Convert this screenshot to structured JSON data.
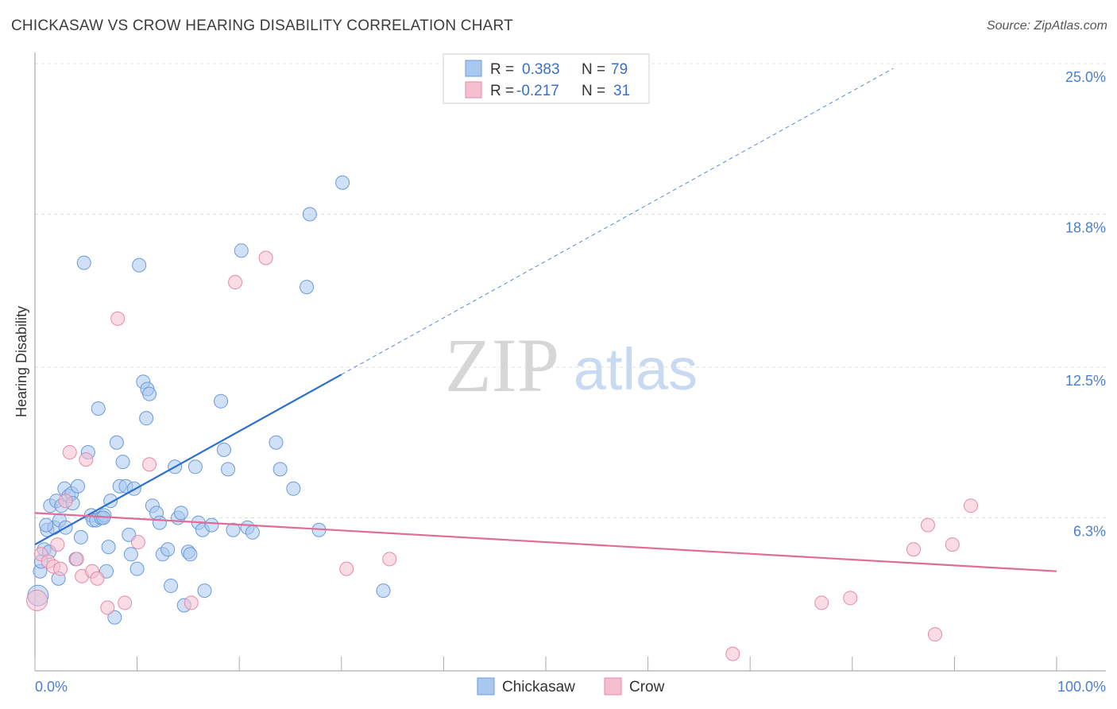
{
  "title": "CHICKASAW VS CROW HEARING DISABILITY CORRELATION CHART",
  "source": "Source: ZipAtlas.com",
  "watermark": {
    "zip": "ZIP",
    "atlas": "atlas"
  },
  "chart_data": {
    "type": "scatter",
    "title": "CHICKASAW VS CROW HEARING DISABILITY CORRELATION CHART",
    "ylabel": "Hearing Disability",
    "xlabel": "",
    "xlim": [
      0,
      100
    ],
    "ylim": [
      0,
      25
    ],
    "x_tick_labels": [
      "0.0%",
      "100.0%"
    ],
    "y_ticks": [
      6.3,
      12.5,
      18.8,
      25.0
    ],
    "y_tick_labels": [
      "6.3%",
      "12.5%",
      "18.8%",
      "25.0%"
    ],
    "grid": true,
    "legend": {
      "placement": "top-center",
      "rows": [
        {
          "r_label": "R =",
          "r_value": "0.383",
          "n_label": "N =",
          "n_value": "79"
        },
        {
          "r_label": "R =",
          "r_value": "-0.217",
          "n_label": "N =",
          "n_value": "31"
        }
      ]
    },
    "series": [
      {
        "name": "Chickasaw",
        "color": "#a9c8f0",
        "stroke": "#6b9ad8",
        "line_color": "#2a6fd0",
        "trend": {
          "x0": 0,
          "y0": 5.2,
          "x1": 30,
          "y1": 12.2,
          "solid_until": 30,
          "dashed_until": 84
        },
        "points": [
          [
            0.3,
            3.1
          ],
          [
            0.5,
            4.1
          ],
          [
            0.6,
            4.5
          ],
          [
            0.9,
            5.0
          ],
          [
            1.2,
            5.8
          ],
          [
            1.5,
            6.8
          ],
          [
            1.4,
            4.9
          ],
          [
            1.9,
            5.9
          ],
          [
            2.1,
            7.0
          ],
          [
            2.3,
            3.8
          ],
          [
            2.6,
            6.8
          ],
          [
            2.9,
            7.5
          ],
          [
            3.3,
            7.2
          ],
          [
            3.6,
            7.3
          ],
          [
            3.7,
            6.9
          ],
          [
            4.0,
            4.6
          ],
          [
            4.2,
            7.6
          ],
          [
            4.5,
            5.5
          ],
          [
            4.8,
            16.8
          ],
          [
            5.2,
            9.0
          ],
          [
            5.5,
            6.4
          ],
          [
            5.7,
            6.2
          ],
          [
            6.0,
            6.2
          ],
          [
            6.2,
            10.8
          ],
          [
            6.5,
            6.3
          ],
          [
            6.8,
            6.4
          ],
          [
            7.0,
            4.1
          ],
          [
            7.2,
            5.1
          ],
          [
            7.4,
            7.0
          ],
          [
            7.8,
            2.2
          ],
          [
            8.0,
            9.4
          ],
          [
            8.3,
            7.6
          ],
          [
            8.6,
            8.6
          ],
          [
            8.9,
            7.6
          ],
          [
            9.2,
            5.6
          ],
          [
            9.4,
            4.8
          ],
          [
            9.7,
            7.5
          ],
          [
            10.0,
            4.2
          ],
          [
            10.2,
            16.7
          ],
          [
            10.6,
            11.9
          ],
          [
            10.9,
            10.4
          ],
          [
            11.0,
            11.6
          ],
          [
            11.2,
            11.4
          ],
          [
            11.5,
            6.8
          ],
          [
            11.9,
            6.5
          ],
          [
            12.2,
            6.1
          ],
          [
            12.5,
            4.8
          ],
          [
            13.0,
            5.0
          ],
          [
            13.3,
            3.5
          ],
          [
            13.7,
            8.4
          ],
          [
            14.0,
            6.3
          ],
          [
            14.3,
            6.5
          ],
          [
            14.6,
            2.7
          ],
          [
            15.0,
            4.9
          ],
          [
            15.2,
            4.8
          ],
          [
            15.7,
            8.4
          ],
          [
            16.0,
            6.1
          ],
          [
            16.4,
            5.8
          ],
          [
            16.6,
            3.3
          ],
          [
            17.3,
            6.0
          ],
          [
            18.2,
            11.1
          ],
          [
            18.5,
            9.1
          ],
          [
            18.9,
            8.3
          ],
          [
            19.4,
            5.8
          ],
          [
            20.2,
            17.3
          ],
          [
            20.8,
            5.9
          ],
          [
            21.3,
            5.7
          ],
          [
            23.6,
            9.4
          ],
          [
            24.0,
            8.3
          ],
          [
            25.3,
            7.5
          ],
          [
            26.6,
            15.8
          ],
          [
            26.9,
            18.8
          ],
          [
            27.8,
            5.8
          ],
          [
            30.1,
            20.1
          ],
          [
            34.1,
            3.3
          ],
          [
            1.1,
            6.0
          ],
          [
            2.4,
            6.2
          ],
          [
            3.0,
            5.9
          ],
          [
            6.7,
            6.3
          ]
        ]
      },
      {
        "name": "Crow",
        "color": "#f6bfd0",
        "stroke": "#e58aa8",
        "line_color": "#e06c98",
        "trend": {
          "x0": 0,
          "y0": 6.5,
          "x1": 100,
          "y1": 4.1,
          "solid_until": 100,
          "dashed_until": 100
        },
        "points": [
          [
            0.2,
            2.9
          ],
          [
            0.6,
            4.8
          ],
          [
            1.3,
            4.5
          ],
          [
            1.8,
            4.3
          ],
          [
            2.2,
            5.2
          ],
          [
            2.5,
            4.2
          ],
          [
            3.0,
            7.0
          ],
          [
            3.4,
            9.0
          ],
          [
            4.1,
            4.6
          ],
          [
            4.6,
            3.9
          ],
          [
            5.0,
            8.7
          ],
          [
            5.6,
            4.1
          ],
          [
            6.1,
            3.8
          ],
          [
            7.1,
            2.6
          ],
          [
            8.1,
            14.5
          ],
          [
            8.8,
            2.8
          ],
          [
            10.1,
            5.3
          ],
          [
            11.2,
            8.5
          ],
          [
            15.3,
            2.8
          ],
          [
            19.6,
            16.0
          ],
          [
            22.6,
            17.0
          ],
          [
            30.5,
            4.2
          ],
          [
            34.7,
            4.6
          ],
          [
            68.3,
            0.7
          ],
          [
            77.0,
            2.8
          ],
          [
            79.8,
            3.0
          ],
          [
            86.0,
            5.0
          ],
          [
            87.4,
            6.0
          ],
          [
            88.1,
            1.5
          ],
          [
            89.8,
            5.2
          ],
          [
            91.6,
            6.8
          ]
        ]
      }
    ]
  },
  "bottom_legend": {
    "items": [
      "Chickasaw",
      "Crow"
    ]
  }
}
